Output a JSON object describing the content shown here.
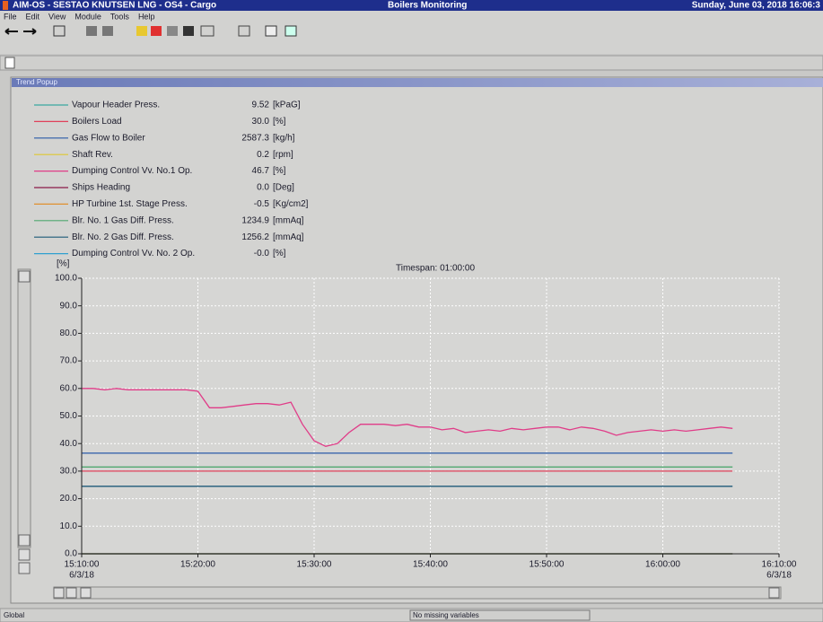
{
  "window": {
    "title": "AIM-OS - SESTAO KNUTSEN LNG - OS4 - Cargo",
    "screen": "Boilers Monitoring",
    "datetime": "Sunday, June 03, 2018 16:06:3"
  },
  "menu": [
    "File",
    "Edit",
    "View",
    "Module",
    "Tools",
    "Help"
  ],
  "popup": {
    "title": "Trend Popup"
  },
  "status": {
    "left": "Global",
    "center": "No missing variables"
  },
  "chart_data": {
    "type": "line",
    "y_unit": "[%]",
    "timespan": "Timespan: 01:00:00",
    "xlim": [
      910,
      970
    ],
    "xticks": [
      {
        "value": 910,
        "label": "15:10:00",
        "date": "6/3/18"
      },
      {
        "value": 920,
        "label": "15:20:00"
      },
      {
        "value": 930,
        "label": "15:30:00"
      },
      {
        "value": 940,
        "label": "15:40:00"
      },
      {
        "value": 950,
        "label": "15:50:00"
      },
      {
        "value": 960,
        "label": "16:00:00"
      },
      {
        "value": 970,
        "label": "16:10:00",
        "date": "6/3/18"
      }
    ],
    "ylim": [
      0,
      100
    ],
    "yticks": [
      {
        "value": 0,
        "label": "0.0"
      },
      {
        "value": 10,
        "label": "10.0"
      },
      {
        "value": 20,
        "label": "20.0"
      },
      {
        "value": 30,
        "label": "30.0"
      },
      {
        "value": 40,
        "label": "40.0"
      },
      {
        "value": 50,
        "label": "50.0"
      },
      {
        "value": 60,
        "label": "60.0"
      },
      {
        "value": 70,
        "label": "70.0"
      },
      {
        "value": 80,
        "label": "80.0"
      },
      {
        "value": 90,
        "label": "90.0"
      },
      {
        "value": 100,
        "label": "100.0"
      }
    ],
    "grid": true,
    "series": [
      {
        "name": "Vapour Header Press.",
        "readout": "9.52",
        "unit": "[kPaG]",
        "color": "#3aa8a0",
        "x": [
          910,
          966
        ],
        "values": [
          0,
          0
        ]
      },
      {
        "name": "Boilers Load",
        "readout": "30.0",
        "unit": "[%]",
        "color": "#e0405a",
        "x": [
          910,
          966
        ],
        "values": [
          30,
          30
        ]
      },
      {
        "name": "Gas Flow to Boiler",
        "readout": "2587.3",
        "unit": "[kg/h]",
        "color": "#2a5aa8",
        "x": [
          910,
          966
        ],
        "values": [
          36.5,
          36.5
        ]
      },
      {
        "name": "Shaft Rev.",
        "readout": "0.2",
        "unit": "[rpm]",
        "color": "#e0c830",
        "x": [
          910,
          966
        ],
        "values": [
          0,
          0
        ]
      },
      {
        "name": "Dumping Control Vv. No.1 Op.",
        "readout": "46.7",
        "unit": "[%]",
        "color": "#e03c88",
        "x": [
          910,
          911,
          912,
          913,
          914,
          915,
          916,
          917,
          918,
          919,
          920,
          921,
          922,
          923,
          924,
          925,
          926,
          927,
          928,
          929,
          930,
          931,
          932,
          933,
          934,
          935,
          936,
          937,
          938,
          939,
          940,
          941,
          942,
          943,
          944,
          945,
          946,
          947,
          948,
          949,
          950,
          951,
          952,
          953,
          954,
          955,
          956,
          957,
          958,
          959,
          960,
          961,
          962,
          963,
          964,
          965,
          966
        ],
        "values": [
          60,
          60,
          59.5,
          60,
          59.5,
          59.5,
          59.5,
          59.5,
          59.5,
          59.5,
          59,
          53,
          53,
          53.5,
          54,
          54.5,
          54.5,
          54,
          55,
          47,
          41,
          39,
          40,
          44,
          47,
          47,
          47,
          46.5,
          47,
          46,
          46,
          45,
          45.5,
          44,
          44.5,
          45,
          44.5,
          45.5,
          45,
          45.5,
          46,
          46,
          45,
          46,
          45.5,
          44.5,
          43,
          44,
          44.5,
          45,
          44.5,
          45,
          44.5,
          45,
          45.5,
          46,
          45.5
        ]
      },
      {
        "name": "Ships Heading",
        "readout": "0.0",
        "unit": "[Deg]",
        "color": "#8a1a48",
        "x": [
          910,
          966
        ],
        "values": [
          0,
          0
        ]
      },
      {
        "name": "HP Turbine 1st. Stage Press.",
        "readout": "-0.5",
        "unit": "[Kg/cm2]",
        "color": "#e09030",
        "x": [
          910,
          966
        ],
        "values": [
          0,
          0
        ]
      },
      {
        "name": "Blr. No. 1 Gas Diff. Press.",
        "readout": "1234.9",
        "unit": "[mmAq]",
        "color": "#50a870",
        "x": [
          910,
          966
        ],
        "values": [
          31.5,
          31.5
        ]
      },
      {
        "name": "Blr. No. 2 Gas Diff. Press.",
        "readout": "1256.2",
        "unit": "[mmAq]",
        "color": "#1e5a78",
        "x": [
          910,
          966
        ],
        "values": [
          24.5,
          24.5
        ]
      },
      {
        "name": "Dumping Control Vv. No. 2 Op.",
        "readout": "-0.0",
        "unit": "[%]",
        "color": "#30a0d0",
        "x": [
          910,
          966
        ],
        "values": [
          0,
          0
        ]
      }
    ]
  }
}
